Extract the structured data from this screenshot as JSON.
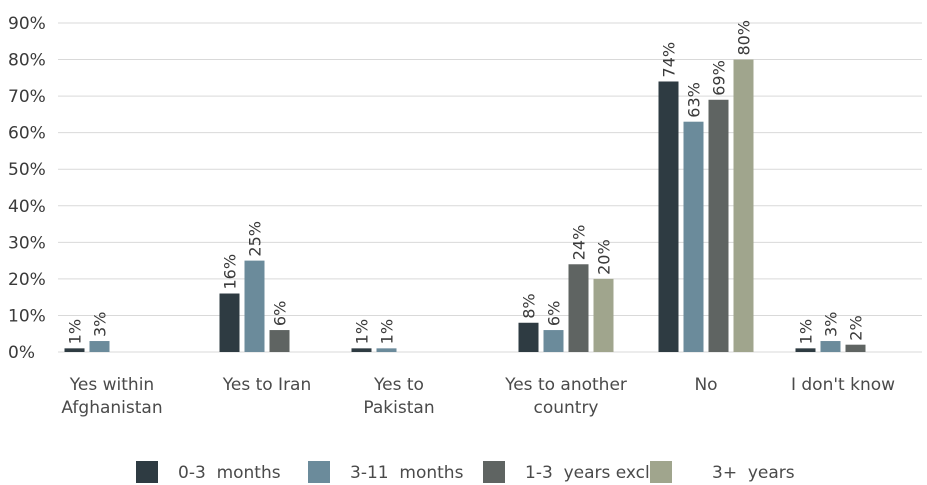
{
  "chart_data": {
    "type": "bar",
    "title": "",
    "xlabel": "",
    "ylabel": "",
    "ylim": [
      0,
      90
    ],
    "yticks": [
      "0%",
      "10%",
      "20%",
      "30%",
      "40%",
      "50%",
      "60%",
      "70%",
      "80%",
      "90%"
    ],
    "grid": true,
    "legend_position": "bottom",
    "categories": [
      [
        "Yes within",
        "Afghanistan"
      ],
      [
        "Yes to Iran"
      ],
      [
        "Yes to",
        "Pakistan"
      ],
      [
        "Yes to another",
        "country"
      ],
      [
        "No"
      ],
      [
        "I don't know"
      ]
    ],
    "series": [
      {
        "name": "0-3  months",
        "color": "#2e3b42",
        "values": [
          1,
          16,
          1,
          8,
          74,
          1
        ],
        "labels": [
          "1%",
          "16%",
          "1%",
          "8%",
          "74%",
          "1%"
        ]
      },
      {
        "name": "3-11  months",
        "color": "#6b8b9b",
        "values": [
          3,
          25,
          1,
          6,
          63,
          3
        ],
        "labels": [
          "3%",
          "25%",
          "1%",
          "6%",
          "63%",
          "3%"
        ]
      },
      {
        "name": "1-3  years excl",
        "color": "#5f6462",
        "values": [
          null,
          6,
          null,
          24,
          69,
          2
        ],
        "labels": [
          "",
          "6%",
          "",
          "24%",
          "69%",
          "2%"
        ]
      },
      {
        "name": "3+  years",
        "color": "#a0a58d",
        "values": [
          null,
          null,
          null,
          20,
          80,
          null
        ],
        "labels": [
          "",
          "",
          "",
          "20%",
          "80%",
          ""
        ]
      }
    ]
  }
}
